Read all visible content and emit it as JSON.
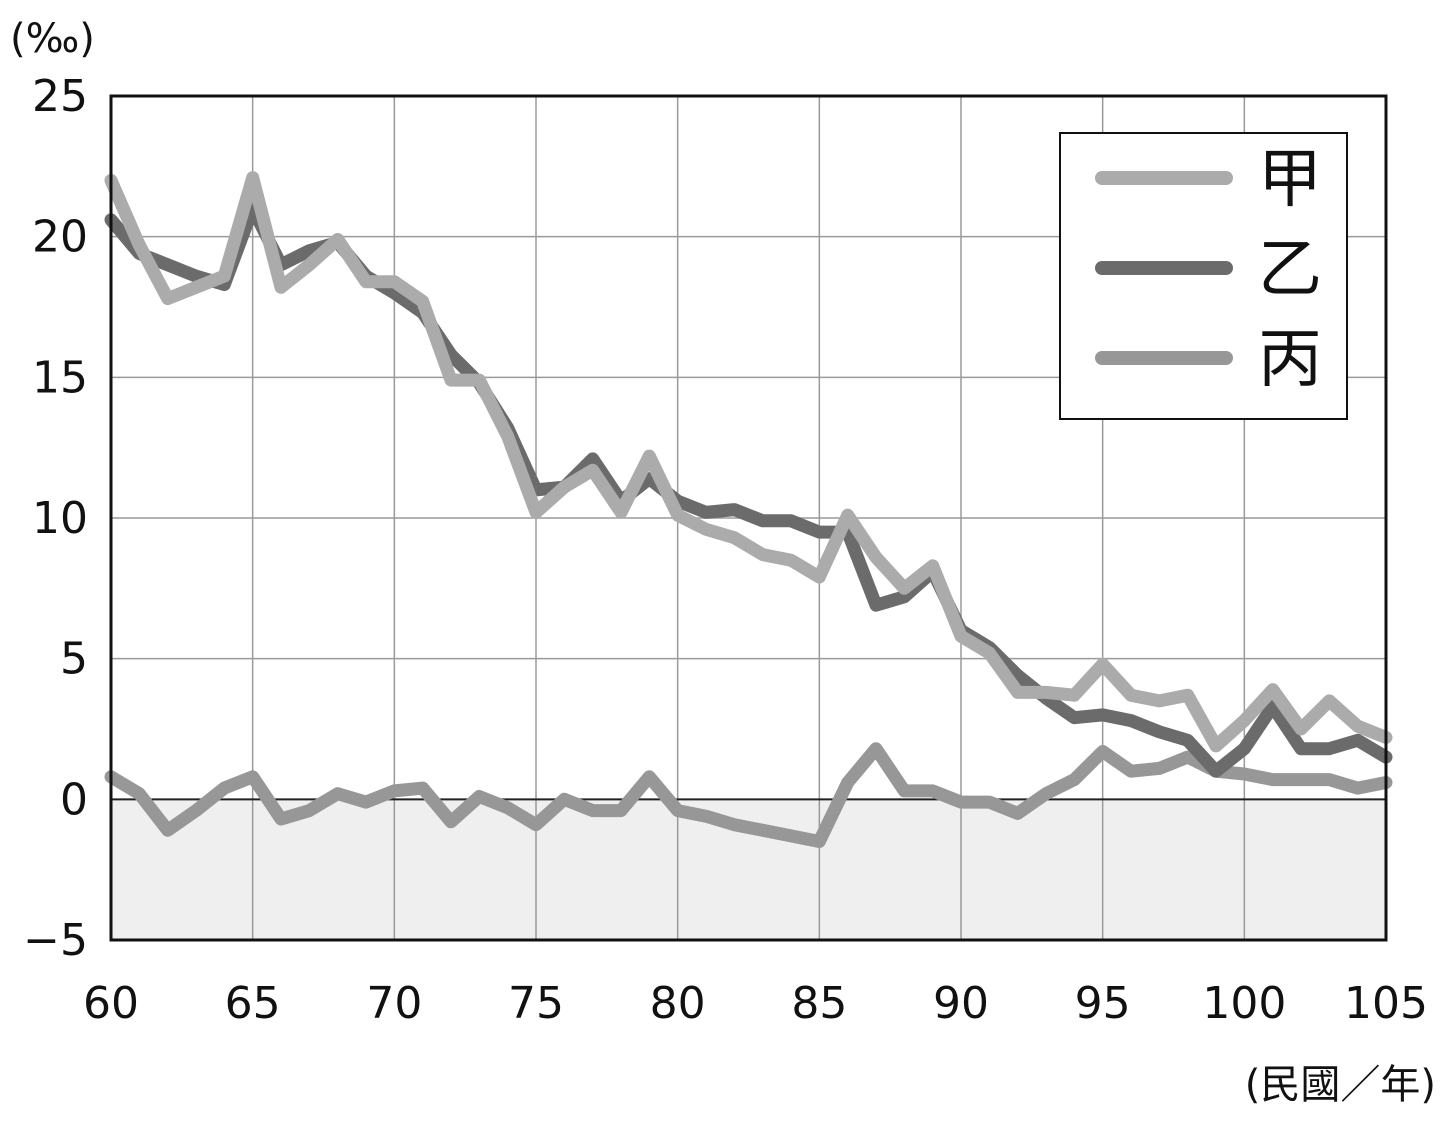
{
  "chart_data": {
    "type": "line",
    "y_unit": "(‰)",
    "x_unit": "(民國／年)",
    "xlim": [
      60,
      105
    ],
    "ylim": [
      -5,
      25
    ],
    "x_ticks": [
      60,
      65,
      70,
      75,
      80,
      85,
      90,
      95,
      100,
      105
    ],
    "x_tick_labels": [
      "60",
      "65",
      "70",
      "75",
      "80",
      "85",
      "90",
      "95",
      "100",
      "105"
    ],
    "y_ticks": [
      -5,
      0,
      5,
      10,
      15,
      20,
      25
    ],
    "y_tick_labels": [
      "−5",
      "0",
      "5",
      "10",
      "15",
      "20",
      "25"
    ],
    "grid": true,
    "negative_region_shaded": true,
    "legend_position": "top-right",
    "x": [
      60,
      61,
      62,
      63,
      64,
      65,
      66,
      67,
      68,
      69,
      70,
      71,
      72,
      73,
      74,
      75,
      76,
      77,
      78,
      79,
      80,
      81,
      82,
      83,
      84,
      85,
      86,
      87,
      88,
      89,
      90,
      91,
      92,
      93,
      94,
      95,
      96,
      97,
      98,
      99,
      100,
      101,
      102,
      103,
      104,
      105
    ],
    "series": [
      {
        "name": "甲",
        "color": "#ababab",
        "values": [
          22.0,
          19.7,
          17.8,
          18.2,
          18.6,
          22.1,
          18.2,
          19.0,
          19.9,
          18.4,
          18.4,
          17.7,
          14.9,
          14.9,
          12.9,
          10.2,
          11.1,
          11.7,
          10.2,
          12.2,
          10.1,
          9.6,
          9.3,
          8.7,
          8.5,
          7.9,
          10.1,
          8.6,
          7.5,
          8.3,
          5.8,
          5.2,
          3.8,
          3.8,
          3.7,
          4.8,
          3.7,
          3.5,
          3.7,
          1.9,
          2.8,
          3.9,
          2.5,
          3.5,
          2.6,
          2.2
        ]
      },
      {
        "name": "乙",
        "color": "#6b6b6b",
        "values": [
          20.6,
          19.4,
          19.0,
          18.6,
          18.3,
          21.0,
          19.0,
          19.5,
          19.8,
          18.6,
          18.0,
          17.3,
          15.8,
          14.8,
          13.2,
          11.0,
          11.1,
          12.1,
          10.6,
          11.4,
          10.6,
          10.2,
          10.3,
          9.9,
          9.9,
          9.5,
          9.5,
          6.9,
          7.2,
          8.1,
          6.0,
          5.4,
          4.4,
          3.6,
          2.9,
          3.0,
          2.8,
          2.4,
          2.1,
          1.0,
          1.8,
          3.3,
          1.8,
          1.8,
          2.1,
          1.5
        ]
      },
      {
        "name": "丙",
        "color": "#979797",
        "values": [
          0.8,
          0.2,
          -1.1,
          -0.4,
          0.4,
          0.8,
          -0.7,
          -0.4,
          0.2,
          -0.1,
          0.3,
          0.4,
          -0.8,
          0.1,
          -0.3,
          -0.9,
          0.0,
          -0.4,
          -0.4,
          0.8,
          -0.4,
          -0.6,
          -0.9,
          -1.1,
          -1.3,
          -1.5,
          0.6,
          1.8,
          0.3,
          0.3,
          -0.1,
          -0.1,
          -0.5,
          0.2,
          0.7,
          1.7,
          1.0,
          1.1,
          1.5,
          1.0,
          0.9,
          0.7,
          0.7,
          0.7,
          0.4,
          0.6
        ]
      }
    ]
  }
}
